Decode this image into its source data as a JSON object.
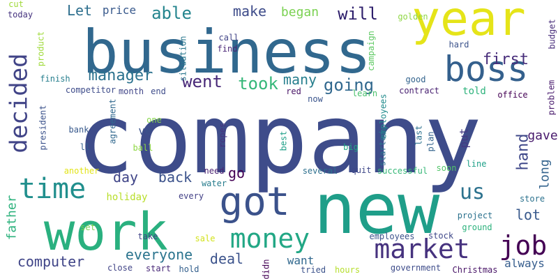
{
  "words": [
    {
      "text": "company",
      "color": "#3e4c8a",
      "vertical": false
    },
    {
      "text": "business",
      "color": "#31688e",
      "vertical": false
    },
    {
      "text": "new",
      "color": "#1f9e89",
      "vertical": false
    },
    {
      "text": "work",
      "color": "#2ab07f",
      "vertical": false
    },
    {
      "text": "year",
      "color": "#e5e419",
      "vertical": false
    },
    {
      "text": "boss",
      "color": "#34608d",
      "vertical": false
    },
    {
      "text": "got",
      "color": "#3b528b",
      "vertical": false
    },
    {
      "text": "market",
      "color": "#46327e",
      "vertical": false
    },
    {
      "text": "job",
      "color": "#440154",
      "vertical": false
    },
    {
      "text": "money",
      "color": "#22a785",
      "vertical": false
    },
    {
      "text": "time",
      "color": "#218f8d",
      "vertical": false
    },
    {
      "text": "decided",
      "color": "#414487",
      "vertical": true
    },
    {
      "text": "manager",
      "color": "#2c728e",
      "vertical": false
    },
    {
      "text": "went",
      "color": "#482878",
      "vertical": false
    },
    {
      "text": "took",
      "color": "#35b779",
      "vertical": false
    },
    {
      "text": "going",
      "color": "#31688e",
      "vertical": false
    },
    {
      "text": "first",
      "color": "#472c7a",
      "vertical": false
    },
    {
      "text": "will",
      "color": "#2d1e6b",
      "vertical": false
    },
    {
      "text": "make",
      "color": "#3e4c8a",
      "vertical": false
    },
    {
      "text": "able",
      "color": "#25858e",
      "vertical": false
    },
    {
      "text": "began",
      "color": "#7ad151",
      "vertical": false
    },
    {
      "text": "Let",
      "color": "#2e6f8e",
      "vertical": false
    },
    {
      "text": "price",
      "color": "#38598c",
      "vertical": false
    },
    {
      "text": "many",
      "color": "#277f8e",
      "vertical": false
    },
    {
      "text": "hand",
      "color": "#3f4889",
      "vertical": true
    },
    {
      "text": "gave",
      "color": "#481a6c",
      "vertical": false
    },
    {
      "text": "long",
      "color": "#33638d",
      "vertical": true
    },
    {
      "text": "put",
      "color": "#443983",
      "vertical": true
    },
    {
      "text": "day",
      "color": "#404588",
      "vertical": false
    },
    {
      "text": "back",
      "color": "#3b528b",
      "vertical": false
    },
    {
      "text": "go",
      "color": "#440154",
      "vertical": false
    },
    {
      "text": "us",
      "color": "#2c728e",
      "vertical": false
    },
    {
      "text": "lot",
      "color": "#38598c",
      "vertical": false
    },
    {
      "text": "everyone",
      "color": "#2b748e",
      "vertical": false
    },
    {
      "text": "deal",
      "color": "#3b528b",
      "vertical": false
    },
    {
      "text": "want",
      "color": "#31688e",
      "vertical": false
    },
    {
      "text": "computer",
      "color": "#404588",
      "vertical": false
    },
    {
      "text": "always",
      "color": "#365d8d",
      "vertical": false
    },
    {
      "text": "father",
      "color": "#2db27d",
      "vertical": true
    },
    {
      "text": "ve",
      "color": "#3b528b",
      "vertical": false
    },
    {
      "text": "told",
      "color": "#2eb37c",
      "vertical": false
    },
    {
      "text": "office",
      "color": "#440154",
      "vertical": false
    },
    {
      "text": "store",
      "color": "#2c728e",
      "vertical": false
    },
    {
      "text": "project",
      "color": "#2c728e",
      "vertical": false
    },
    {
      "text": "cut",
      "color": "#a0da39",
      "vertical": false
    },
    {
      "text": "today",
      "color": "#46337f",
      "vertical": false
    },
    {
      "text": "product",
      "color": "#9fda3a",
      "vertical": true
    },
    {
      "text": "call",
      "color": "#414487",
      "vertical": false
    },
    {
      "text": "find",
      "color": "#482475",
      "vertical": false
    },
    {
      "text": "situation",
      "color": "#2a788e",
      "vertical": true
    },
    {
      "text": "campaign",
      "color": "#5ec962",
      "vertical": true
    },
    {
      "text": "golden",
      "color": "#8fd744",
      "vertical": false
    },
    {
      "text": "budget",
      "color": "#472c7a",
      "vertical": true
    },
    {
      "text": "hard",
      "color": "#3b528b",
      "vertical": false
    },
    {
      "text": "finish",
      "color": "#277f8e",
      "vertical": false
    },
    {
      "text": "competitor",
      "color": "#3e4c8a",
      "vertical": false
    },
    {
      "text": "month",
      "color": "#404588",
      "vertical": false
    },
    {
      "text": "end",
      "color": "#3e4c8a",
      "vertical": false
    },
    {
      "text": "red",
      "color": "#471365",
      "vertical": false
    },
    {
      "text": "good",
      "color": "#33638d",
      "vertical": false
    },
    {
      "text": "contract",
      "color": "#482071",
      "vertical": false
    },
    {
      "text": "learn",
      "color": "#4ac16d",
      "vertical": false
    },
    {
      "text": "now",
      "color": "#3a548c",
      "vertical": false
    },
    {
      "text": "problem",
      "color": "#481a6c",
      "vertical": true
    },
    {
      "text": "president",
      "color": "#3b528b",
      "vertical": true
    },
    {
      "text": "bank",
      "color": "#38598c",
      "vertical": false
    },
    {
      "text": "agreement",
      "color": "#31688e",
      "vertical": true
    },
    {
      "text": "ll",
      "color": "#34608d",
      "vertical": false
    },
    {
      "text": "one",
      "color": "#86d549",
      "vertical": false
    },
    {
      "text": "ball",
      "color": "#8fd744",
      "vertical": false
    },
    {
      "text": "ropes",
      "color": "#46337f",
      "vertical": true
    },
    {
      "text": "best",
      "color": "#1fa088",
      "vertical": true
    },
    {
      "text": "employees",
      "color": "#228c8d",
      "vertical": true
    },
    {
      "text": "big",
      "color": "#22a785",
      "vertical": false
    },
    {
      "text": "started",
      "color": "#2c728e",
      "vertical": true
    },
    {
      "text": "last",
      "color": "#2c728e",
      "vertical": true
    },
    {
      "text": "plan",
      "color": "#33638d",
      "vertical": true
    },
    {
      "text": "another",
      "color": "#e2e418",
      "vertical": false
    },
    {
      "text": "need",
      "color": "#481f70",
      "vertical": false
    },
    {
      "text": "water",
      "color": "#287d8e",
      "vertical": false
    },
    {
      "text": "several",
      "color": "#2d708e",
      "vertical": false
    },
    {
      "text": "quit",
      "color": "#3f4889",
      "vertical": false
    },
    {
      "text": "successful",
      "color": "#37b878",
      "vertical": false
    },
    {
      "text": "soon",
      "color": "#52c569",
      "vertical": false
    },
    {
      "text": "line",
      "color": "#1fa088",
      "vertical": false
    },
    {
      "text": "holiday",
      "color": "#b8de29",
      "vertical": false
    },
    {
      "text": "every",
      "color": "#424086",
      "vertical": false
    },
    {
      "text": "take",
      "color": "#414487",
      "vertical": false
    },
    {
      "text": "set",
      "color": "#7ad151",
      "vertical": false
    },
    {
      "text": "sale",
      "color": "#d2e21b",
      "vertical": false
    },
    {
      "text": "employees",
      "color": "#3b528b",
      "vertical": false
    },
    {
      "text": "stock",
      "color": "#3f4889",
      "vertical": false
    },
    {
      "text": "ground",
      "color": "#2db27d",
      "vertical": false
    },
    {
      "text": "close",
      "color": "#414487",
      "vertical": false
    },
    {
      "text": "start",
      "color": "#482878",
      "vertical": false
    },
    {
      "text": "hold",
      "color": "#34608d",
      "vertical": false
    },
    {
      "text": "didn",
      "color": "#440154",
      "vertical": true
    },
    {
      "text": "tried",
      "color": "#3b528b",
      "vertical": false
    },
    {
      "text": "hours",
      "color": "#b5de2b",
      "vertical": false
    },
    {
      "text": "government",
      "color": "#3e4c8a",
      "vertical": false
    },
    {
      "text": "Christmas",
      "color": "#481467",
      "vertical": false
    }
  ]
}
